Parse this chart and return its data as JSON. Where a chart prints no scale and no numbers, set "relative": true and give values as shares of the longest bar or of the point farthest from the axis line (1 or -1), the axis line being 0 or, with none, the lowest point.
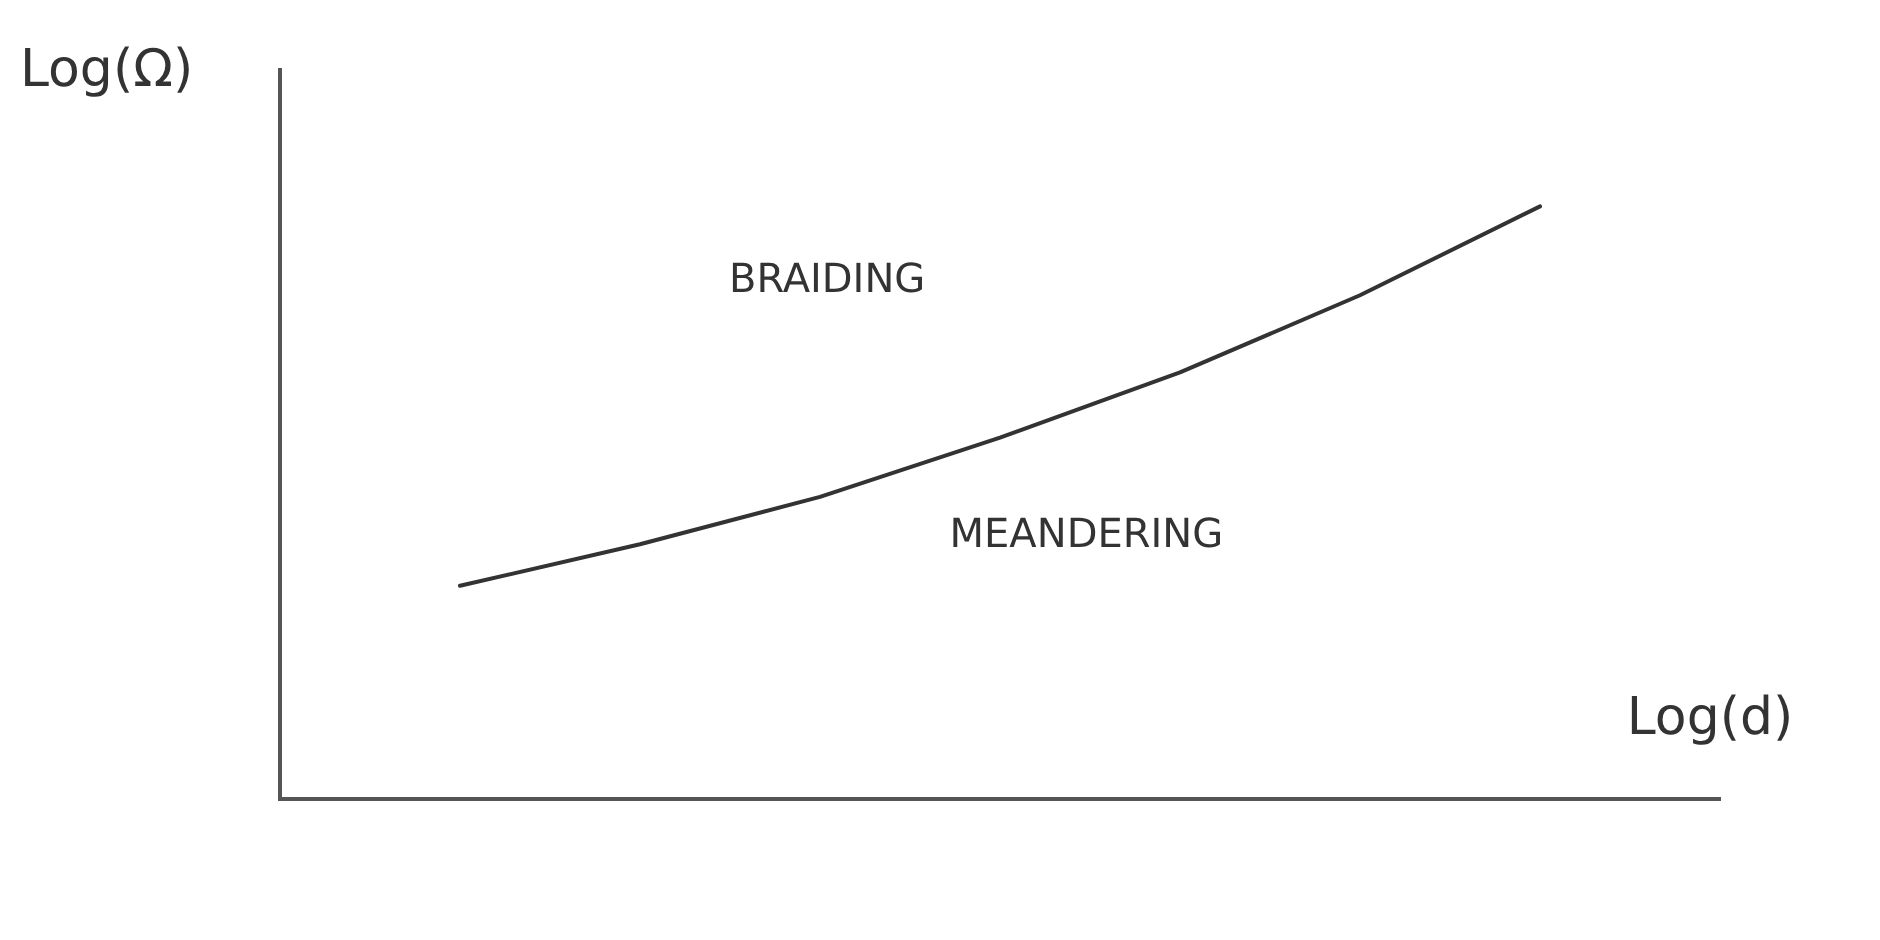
{
  "chart_data": {
    "type": "line",
    "relative": true,
    "xlabel": "Log(d)",
    "ylabel": "Log(Ω)",
    "categories": [
      null,
      null,
      null,
      null,
      null,
      null,
      null,
      null,
      null
    ],
    "series": [
      {
        "color": "#333333",
        "values": [
          null,
          0.36,
          0.43,
          0.51,
          0.61,
          0.72,
          0.85,
          1,
          null
        ]
      }
    ],
    "annotations": [
      "BRAIDING",
      "MEANDERING"
    ],
    "grid": false,
    "legend": false,
    "marker": "none",
    "line_style": "solid"
  }
}
